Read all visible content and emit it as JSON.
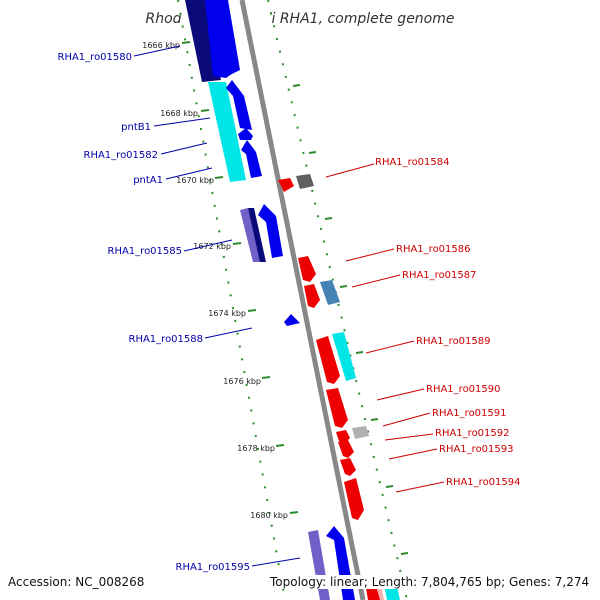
{
  "title": "Rhodococcus jostii RHA1, complete genome",
  "accession_text": "Accession: NC_008268",
  "summary_text": "Topology: linear; Length: 7,804,765 bp; Genes: 7,274",
  "colors": {
    "backbone": "#888888",
    "ticks": "#2e8b2e",
    "left_label": "#0000aa",
    "right_label": "#cc0000",
    "navy": "#0a0a7a",
    "blue": "#0000ee",
    "cyan": "#00e5e5",
    "purple": "#7060c8",
    "red": "#ee0000",
    "gray_dark": "#606060",
    "gray_light": "#b0b0b0",
    "steel": "#4682b4"
  },
  "kbp_labels": [
    "1666 kbp",
    "1668 kbp",
    "1670 kbp",
    "1672 kbp",
    "1674 kbp",
    "1676 kbp",
    "1678 kbp",
    "1680 kbp"
  ],
  "left_gene_labels": [
    "RHA1_ro01580",
    "pntB1",
    "RHA1_ro01582",
    "pntA1",
    "RHA1_ro01585",
    "RHA1_ro01588",
    "RHA1_ro01595"
  ],
  "right_gene_labels": [
    "RHA1_ro01584",
    "RHA1_ro01586",
    "RHA1_ro01587",
    "RHA1_ro01589",
    "RHA1_ro01590",
    "RHA1_ro01591",
    "RHA1_ro01592",
    "RHA1_ro01593",
    "RHA1_ro01594"
  ]
}
